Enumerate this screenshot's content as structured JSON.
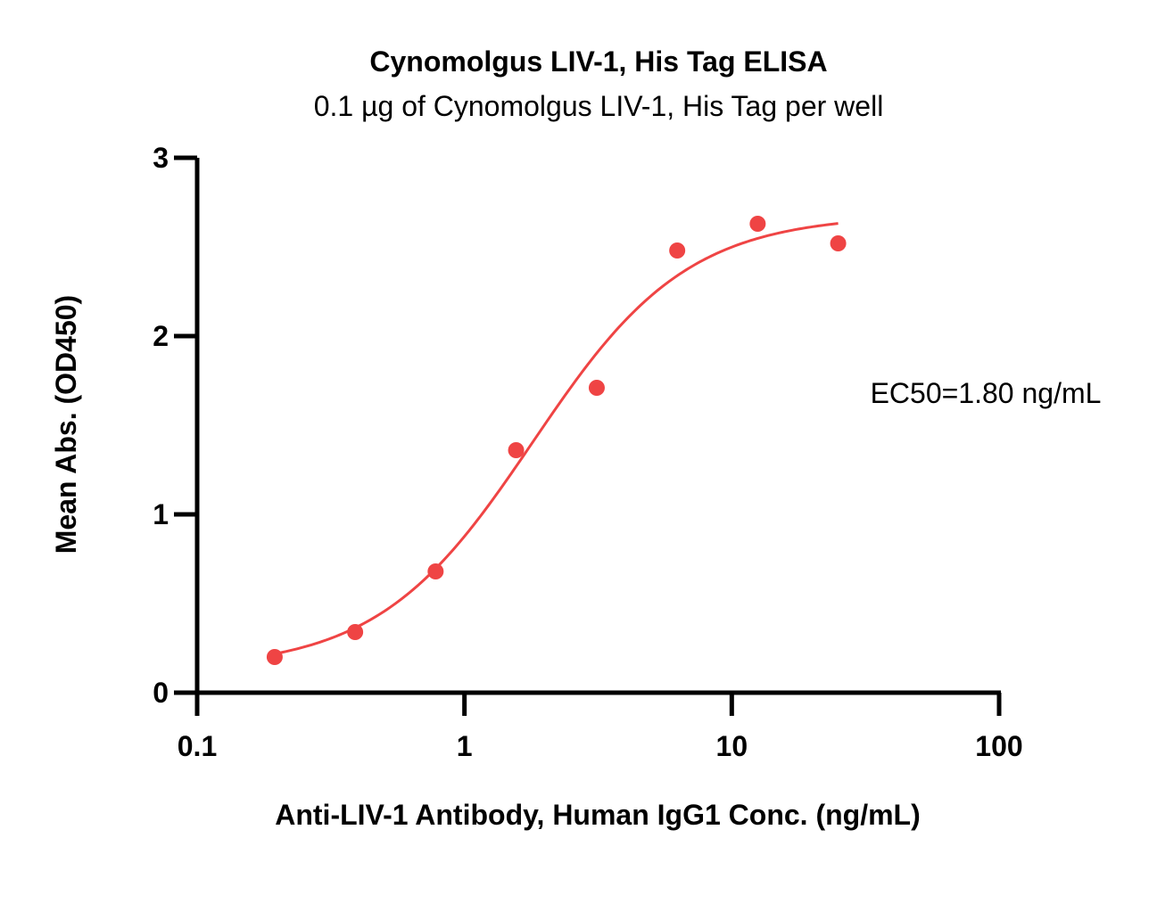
{
  "chart_data": {
    "type": "scatter",
    "title": "Cynomolgus LIV-1, His Tag ELISA",
    "subtitle": "0.1 µg of Cynomolgus LIV-1, His Tag per well",
    "xlabel": "Anti-LIV-1 Antibody, Human IgG1 Conc. (ng/mL)",
    "ylabel": "Mean Abs. (OD450)",
    "xscale": "log",
    "xlim": [
      0.1,
      100
    ],
    "ylim": [
      0,
      3
    ],
    "xticks": [
      0.1,
      1,
      10,
      100
    ],
    "xtick_labels": [
      "0.1",
      "1",
      "10",
      "100"
    ],
    "yticks": [
      0,
      1,
      2,
      3
    ],
    "ytick_labels": [
      "0",
      "1",
      "2",
      "3"
    ],
    "grid": false,
    "annotation": "EC50=1.80 ng/mL",
    "colors": {
      "points": "#ef4444",
      "curve": "#ef4444",
      "axis": "#000000"
    },
    "series": [
      {
        "x": [
          0.195,
          0.39,
          0.78,
          1.56,
          3.125,
          6.25,
          12.5,
          25
        ],
        "y": [
          0.2,
          0.34,
          0.68,
          1.36,
          1.71,
          2.48,
          2.63,
          2.52
        ]
      }
    ],
    "fit": {
      "model": "4PL",
      "bottom": 0.13,
      "top": 2.68,
      "ec50": 1.8,
      "hill": 1.5,
      "x_range": [
        0.195,
        25
      ]
    }
  }
}
